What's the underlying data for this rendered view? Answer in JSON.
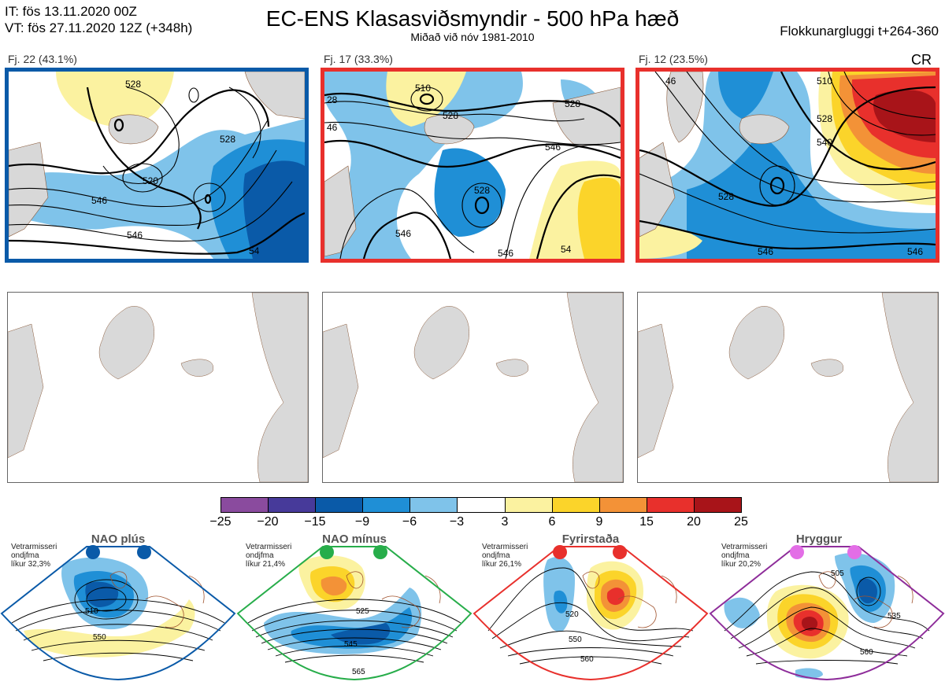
{
  "header": {
    "it": "IT: fös 13.11.2020 00Z",
    "vt": "VT: fös 27.11.2020 12Z  (+348h)",
    "title": "EC-ENS Klasasviðsmyndir - 500 hPa hæð",
    "subtitle": "Miðað við nóv 1981-2010",
    "window": "Flokkunargluggi t+264-360"
  },
  "clusters": [
    {
      "label": "Fj. 22 (43.1%)",
      "frame_color": "#0a5aa8",
      "regime": "NAO+"
    },
    {
      "label": "Fj. 17 (33.3%)",
      "frame_color": "#e8302c",
      "regime": "Blocking"
    },
    {
      "label": "Fj. 12 (23.5%)",
      "frame_color": "#e8302c",
      "regime": "Blocking",
      "tag": "CR"
    }
  ],
  "contour_labels": {
    "c1": [
      "528",
      "520",
      "528",
      "546",
      "546",
      "54"
    ],
    "c2": [
      "28",
      "46",
      "510",
      "528",
      "528",
      "546",
      "528",
      "546",
      "546",
      "54"
    ],
    "c3": [
      "46",
      "510",
      "528",
      "540",
      "528",
      "546",
      "546"
    ]
  },
  "colorbar": {
    "ticks": [
      "−25",
      "−20",
      "−15",
      "−9",
      "−6",
      "−3",
      "3",
      "6",
      "9",
      "15",
      "20",
      "25"
    ],
    "colors": [
      "#8a4b9e",
      "#473a9a",
      "#0a5aa8",
      "#1f8fd6",
      "#7fc3ea",
      "#ffffff",
      "#fbf2a0",
      "#fbd42a",
      "#f39237",
      "#e8302c",
      "#a81419"
    ]
  },
  "regimes": [
    {
      "name": "NAO plús",
      "note": [
        "Vetrarmisseri",
        "ondjfma",
        "líkur 32,3%"
      ],
      "color": "#0a5aa8",
      "labels": [
        "510",
        "550"
      ]
    },
    {
      "name": "NAO mínus",
      "note": [
        "Vetrarmisseri",
        "ondjfma",
        "líkur 21,4%"
      ],
      "color": "#27ad4a",
      "labels": [
        "525",
        "545",
        "565"
      ]
    },
    {
      "name": "Fyrirstaða",
      "note": [
        "Vetrarmisseri",
        "ondjfma",
        "líkur 26,1%"
      ],
      "color": "#e8302c",
      "labels": [
        "520",
        "550",
        "560"
      ]
    },
    {
      "name": "Hryggur",
      "note": [
        "Vetrarmisseri",
        "ondjfma",
        "líkur 20,2%"
      ],
      "color": "#8e2d9a",
      "labels": [
        "505",
        "535",
        "560"
      ]
    }
  ]
}
